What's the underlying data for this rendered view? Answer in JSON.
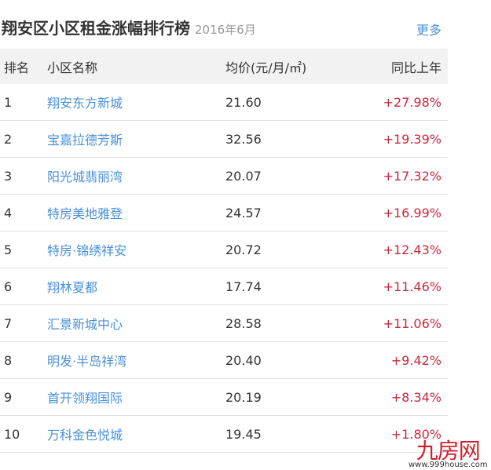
{
  "header": {
    "title": "翔安区小区租金涨幅排行榜",
    "date": "2016年6月",
    "more": "更多"
  },
  "table": {
    "columns": [
      "排名",
      "小区名称",
      "均价(元/月/㎡)",
      "同比上年"
    ],
    "rows": [
      {
        "rank": "1",
        "name": "翔安东方新城",
        "price": "21.60",
        "change": "+27.98%"
      },
      {
        "rank": "2",
        "name": "宝嘉拉德芳斯",
        "price": "32.56",
        "change": "+19.39%"
      },
      {
        "rank": "3",
        "name": "阳光城翡丽湾",
        "price": "20.07",
        "change": "+17.32%"
      },
      {
        "rank": "4",
        "name": "特房美地雅登",
        "price": "24.57",
        "change": "+16.99%"
      },
      {
        "rank": "5",
        "name": "特房·锦绣祥安",
        "price": "20.72",
        "change": "+12.43%"
      },
      {
        "rank": "6",
        "name": "翔林夏都",
        "price": "17.74",
        "change": "+11.46%"
      },
      {
        "rank": "7",
        "name": "汇景新城中心",
        "price": "28.58",
        "change": "+11.06%"
      },
      {
        "rank": "8",
        "name": "明发·半岛祥湾",
        "price": "20.40",
        "change": "+9.42%"
      },
      {
        "rank": "9",
        "name": "首开领翔国际",
        "price": "20.19",
        "change": "+8.34%"
      },
      {
        "rank": "10",
        "name": "万科金色悦城",
        "price": "19.45",
        "change": "+1.80%"
      }
    ]
  },
  "watermark": {
    "logo": "九房网",
    "url": "www.999house.com"
  },
  "colors": {
    "link": "#4a90d9",
    "increase": "#c8283a",
    "header_bg": "#f2f2f2"
  }
}
